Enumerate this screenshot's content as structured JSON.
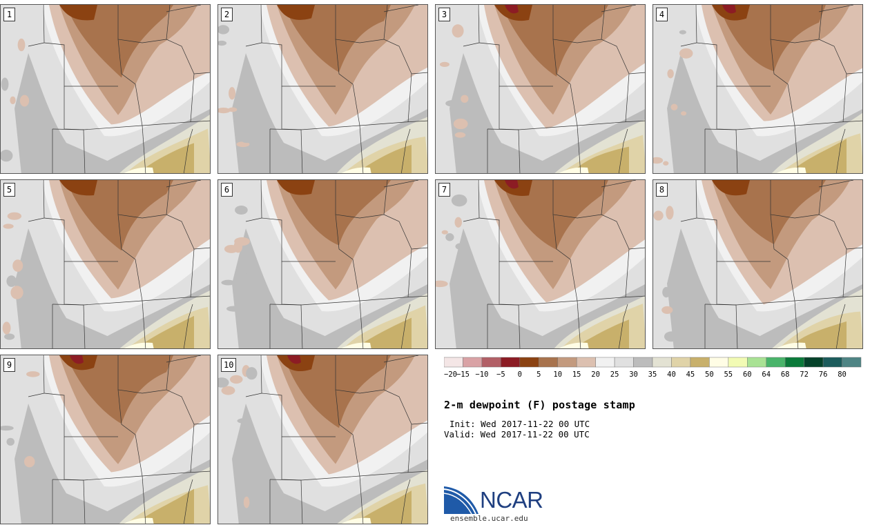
{
  "members": [
    {
      "label": "1"
    },
    {
      "label": "2"
    },
    {
      "label": "3"
    },
    {
      "label": "4"
    },
    {
      "label": "5"
    },
    {
      "label": "6"
    },
    {
      "label": "7"
    },
    {
      "label": "8"
    },
    {
      "label": "9"
    },
    {
      "label": "10"
    }
  ],
  "colorbar": {
    "ticks": [
      "-20",
      "-15",
      "-10",
      "-5",
      "0",
      "5",
      "10",
      "15",
      "20",
      "25",
      "30",
      "35",
      "40",
      "45",
      "50",
      "55",
      "60",
      "64",
      "68",
      "72",
      "76",
      "80"
    ],
    "colors": [
      "#f4e6e6",
      "#d9a2a5",
      "#b25f66",
      "#8c1c24",
      "#8b4212",
      "#a8734d",
      "#c39a7e",
      "#dcc0b0",
      "#f1f1f1",
      "#e0e0e0",
      "#bcbcbc",
      "#e3e2d3",
      "#e0d3a8",
      "#c8b06b",
      "#fffde5",
      "#f2fbb4",
      "#a9e294",
      "#49b46a",
      "#0a7a3a",
      "#05422a",
      "#1c5c5c",
      "#4e8484"
    ]
  },
  "field_colors": {
    "dark_brown": "#8b4212",
    "deep_red": "#8c1c24",
    "brown": "#a8734d",
    "mid_brown": "#c39a7e",
    "light_brown": "#dcc0b0",
    "white": "#f1f1f1",
    "light_gray": "#e0e0e0",
    "mid_gray": "#bcbcbc",
    "gray_tan": "#e3e2d3",
    "tan": "#e0d3a8",
    "gold": "#c8b06b",
    "cream": "#fffde5"
  },
  "title": "2-m dewpoint (F) postage stamp",
  "init": "Init: Wed 2017-11-22 00 UTC",
  "valid": "Valid: Wed 2017-11-22 00 UTC",
  "logo": {
    "name": "NCAR",
    "url": "ensemble.ucar.edu"
  }
}
